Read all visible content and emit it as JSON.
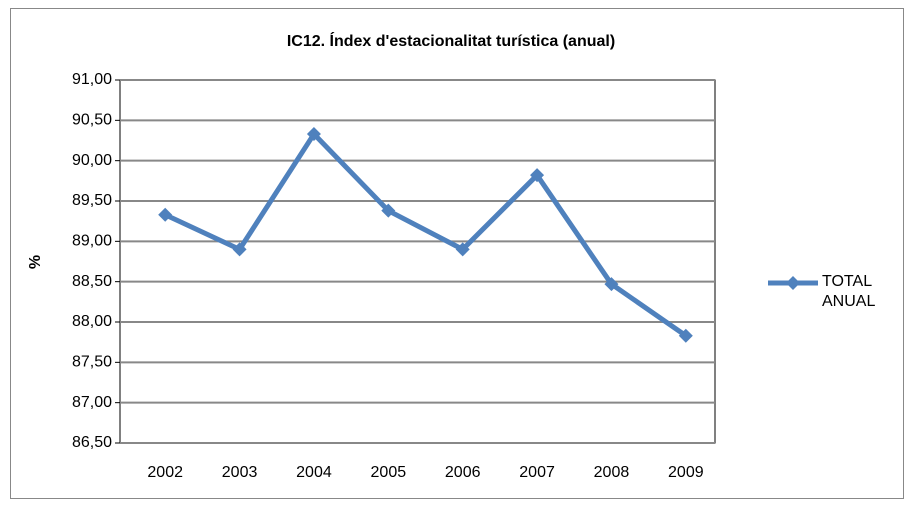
{
  "chart_data": {
    "type": "line",
    "title": "IC12. Índex d'estacionalitat turística (anual)",
    "ylabel": "%",
    "categories": [
      "2002",
      "2003",
      "2004",
      "2005",
      "2006",
      "2007",
      "2008",
      "2009"
    ],
    "series": [
      {
        "name": "TOTAL ANUAL",
        "color": "#4f81bd",
        "values": [
          89.33,
          88.9,
          90.33,
          89.38,
          88.9,
          89.82,
          88.47,
          87.83
        ]
      }
    ],
    "ylim": [
      86.5,
      91
    ],
    "yticks": [
      {
        "value": 86.5,
        "label": "86,50"
      },
      {
        "value": 87,
        "label": "87,00"
      },
      {
        "value": 87.5,
        "label": "87,50"
      },
      {
        "value": 88,
        "label": "88,00"
      },
      {
        "value": 88.5,
        "label": "88,50"
      },
      {
        "value": 89,
        "label": "89,00"
      },
      {
        "value": 89.5,
        "label": "89,50"
      },
      {
        "value": 90,
        "label": "90,00"
      },
      {
        "value": 90.5,
        "label": "90,50"
      },
      {
        "value": 91,
        "label": "91,00"
      }
    ],
    "grid": true,
    "legend": "right"
  }
}
